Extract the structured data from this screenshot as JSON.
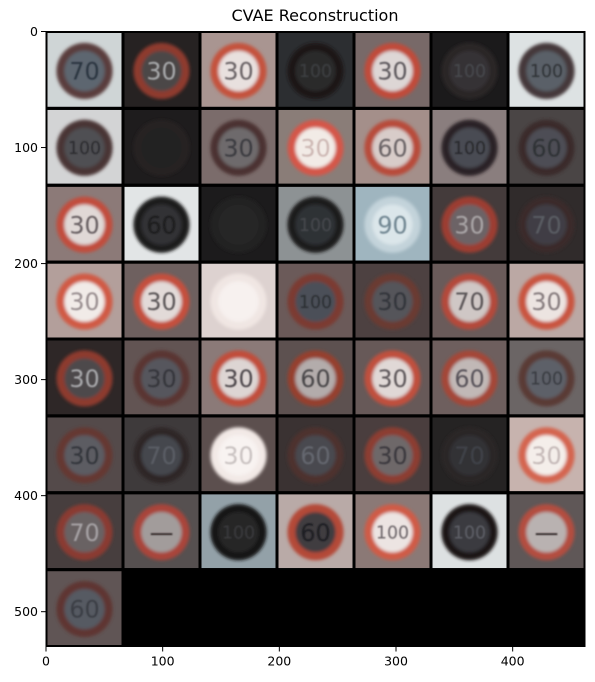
{
  "title": "CVAE Reconstruction",
  "x_ticks": [
    "0",
    "100",
    "200",
    "300",
    "400"
  ],
  "y_ticks": [
    "0",
    "100",
    "200",
    "300",
    "400",
    "500"
  ],
  "grid": {
    "rows": 8,
    "cols": 7,
    "tiles": [
      [
        {
          "label": "70",
          "bg": "#cfd5d6",
          "ring": "#5a3d3c",
          "inner": "#5d6670",
          "text": "#2a3440",
          "dark": false
        },
        {
          "label": "30",
          "bg": "#262222",
          "ring": "#8e3a2e",
          "inner": "#4b4747",
          "text": "#a7a8aa",
          "dark": true
        },
        {
          "label": "30",
          "bg": "#a99591",
          "ring": "#c4523d",
          "inner": "#e8e0de",
          "text": "#6b6366",
          "dark": false
        },
        {
          "label": "100",
          "bg": "#2c2e31",
          "ring": "#1a1718",
          "inner": "#2a292b",
          "text": "#3d3f43",
          "dark": true
        },
        {
          "label": "30",
          "bg": "#786968",
          "ring": "#c04c3a",
          "inner": "#ddd6d5",
          "text": "#5f5a5e",
          "dark": false
        },
        {
          "label": "100",
          "bg": "#1b1a1b",
          "ring": "#2b2527",
          "inner": "#343336",
          "text": "#47494d",
          "dark": true
        },
        {
          "label": "100",
          "bg": "#dde2e3",
          "ring": "#45393a",
          "inner": "#5a6068",
          "text": "#2d3136",
          "dark": false
        }
      ],
      [
        {
          "label": "100",
          "bg": "#d3d4d5",
          "ring": "#4a3434",
          "inner": "#4f4f52",
          "text": "#2b2b2f",
          "dark": false
        },
        {
          "label": "",
          "bg": "#1e1c1d",
          "ring": "#262223",
          "inner": "#242223",
          "text": "#2c2b2c",
          "dark": true
        },
        {
          "label": "30",
          "bg": "#7b6c6b",
          "ring": "#4b3332",
          "inner": "#6e6a6c",
          "text": "#3b3b3f",
          "dark": false
        },
        {
          "label": "30",
          "bg": "#8a7d78",
          "ring": "#d4574a",
          "inner": "#f2ebe6",
          "text": "#cdb8b4",
          "dark": false
        },
        {
          "label": "60",
          "bg": "#a48f8a",
          "ring": "#b84b3b",
          "inner": "#d8ccc9",
          "text": "#6a6466",
          "dark": false
        },
        {
          "label": "100",
          "bg": "#8a7e7e",
          "ring": "#2b2425",
          "inner": "#4a4b52",
          "text": "#25272b",
          "dark": false
        },
        {
          "label": "60",
          "bg": "#4a4545",
          "ring": "#3a2c2c",
          "inner": "#4d4e55",
          "text": "#2e3035",
          "dark": true
        }
      ],
      [
        {
          "label": "30",
          "bg": "#8c7a78",
          "ring": "#c14e3d",
          "inner": "#e0d8d6",
          "text": "#675f62",
          "dark": false
        },
        {
          "label": "60",
          "bg": "#e2e5e6",
          "ring": "#1f1b1c",
          "inner": "#303034",
          "text": "#1a1a1d",
          "dark": false
        },
        {
          "label": "",
          "bg": "#1c1b1c",
          "ring": "#232122",
          "inner": "#262526",
          "text": "#2d2c2d",
          "dark": true
        },
        {
          "label": "100",
          "bg": "#8d9294",
          "ring": "#1e1a1b",
          "inner": "#2f3035",
          "text": "#46484e",
          "dark": false
        },
        {
          "label": "90",
          "bg": "#9fb5bf",
          "ring": "#c3d3da",
          "inner": "#dbe6ea",
          "text": "#6f8591",
          "dark": false
        },
        {
          "label": "30",
          "bg": "#443b3b",
          "ring": "#9c3e31",
          "inner": "#6c6466",
          "text": "#a9a4a6",
          "dark": true
        },
        {
          "label": "70",
          "bg": "#302b2b",
          "ring": "#3a2c2c",
          "inner": "#3f3e44",
          "text": "#5a5d64",
          "dark": true
        }
      ],
      [
        {
          "label": "30",
          "bg": "#b39f9b",
          "ring": "#d05a45",
          "inner": "#f1ebe8",
          "text": "#9a8f91",
          "dark": false
        },
        {
          "label": "30",
          "bg": "#6e605f",
          "ring": "#c4503e",
          "inner": "#e2dad8",
          "text": "#5c5759",
          "dark": false
        },
        {
          "label": "",
          "bg": "#ddd2d0",
          "ring": "#f0e6e3",
          "inner": "#f7f1ef",
          "text": "#f7f1ef",
          "dark": false
        },
        {
          "label": "100",
          "bg": "#6b5a59",
          "ring": "#7c3a30",
          "inner": "#4c5058",
          "text": "#2b2e33",
          "dark": false
        },
        {
          "label": "30",
          "bg": "#4d4141",
          "ring": "#6a3a33",
          "inner": "#54545a",
          "text": "#33353a",
          "dark": true
        },
        {
          "label": "70",
          "bg": "#6a5b5a",
          "ring": "#b4493a",
          "inner": "#cfc7c5",
          "text": "#5a5457",
          "dark": false
        },
        {
          "label": "30",
          "bg": "#bba8a4",
          "ring": "#c9553f",
          "inner": "#ece4e1",
          "text": "#867c7e",
          "dark": false
        }
      ],
      [
        {
          "label": "30",
          "bg": "#2e2727",
          "ring": "#8d3a2e",
          "inner": "#4e4a4c",
          "text": "#a8a8ab",
          "dark": true
        },
        {
          "label": "30",
          "bg": "#625453",
          "ring": "#5a3532",
          "inner": "#57575d",
          "text": "#34363b",
          "dark": false
        },
        {
          "label": "30",
          "bg": "#8b7a78",
          "ring": "#c14d3b",
          "inner": "#ddd5d3",
          "text": "#4f4a4d",
          "dark": false
        },
        {
          "label": "60",
          "bg": "#5d5150",
          "ring": "#95412f",
          "inner": "#b3acab",
          "text": "#4a4649",
          "dark": false
        },
        {
          "label": "30",
          "bg": "#675958",
          "ring": "#c0503e",
          "inner": "#e0d8d6",
          "text": "#5e595b",
          "dark": false
        },
        {
          "label": "60",
          "bg": "#6e5f5e",
          "ring": "#a44737",
          "inner": "#c1b8b6",
          "text": "#58535a",
          "dark": false
        },
        {
          "label": "100",
          "bg": "#6b6565",
          "ring": "#5a3a36",
          "inner": "#5d6068",
          "text": "#383b41",
          "dark": false
        }
      ],
      [
        {
          "label": "30",
          "bg": "#544a4a",
          "ring": "#653733",
          "inner": "#5b5b62",
          "text": "#33353b",
          "dark": false
        },
        {
          "label": "70",
          "bg": "#3e3a3b",
          "ring": "#2e2628",
          "inner": "#45464d",
          "text": "#5a5d65",
          "dark": true
        },
        {
          "label": "30",
          "bg": "#5c4f4e",
          "ring": "#f2e9e6",
          "inner": "#f8f3f1",
          "text": "#c9c2c1",
          "dark": false
        },
        {
          "label": "60",
          "bg": "#3a3232",
          "ring": "#4e302d",
          "inner": "#4a4a50",
          "text": "#65686f",
          "dark": true
        },
        {
          "label": "30",
          "bg": "#4a3e3e",
          "ring": "#8c3d32",
          "inner": "#6e6769",
          "text": "#3a393d",
          "dark": true
        },
        {
          "label": "70",
          "bg": "#252323",
          "ring": "#2c2526",
          "inner": "#303036",
          "text": "#3f4248",
          "dark": true
        },
        {
          "label": "30",
          "bg": "#c7b3ae",
          "ring": "#d4654f",
          "inner": "#f4eeea",
          "text": "#c5b9b8",
          "dark": false
        }
      ],
      [
        {
          "label": "70",
          "bg": "#473e3e",
          "ring": "#8a3b30",
          "inner": "#696264",
          "text": "#a6a2a5",
          "dark": true
        },
        {
          "label": "—",
          "bg": "#565050",
          "ring": "#a9453a",
          "inner": "#a29c9b",
          "text": "#2a2223",
          "dark": false
        },
        {
          "label": "100",
          "bg": "#93a1a8",
          "ring": "#161415",
          "inner": "#262628",
          "text": "#3a3b3e",
          "dark": false
        },
        {
          "label": "60",
          "bg": "#b9aaa7",
          "ring": "#b44838",
          "inner": "#3f3d41",
          "text": "#1c1d21",
          "dark": false
        },
        {
          "label": "100",
          "bg": "#8b7976",
          "ring": "#cf5c47",
          "inner": "#ece4e2",
          "text": "#6b6467",
          "dark": false
        },
        {
          "label": "100",
          "bg": "#dde1e2",
          "ring": "#1a1819",
          "inner": "#3a3b40",
          "text": "#5e6068",
          "dark": false
        },
        {
          "label": "—",
          "bg": "#5f5757",
          "ring": "#b34e40",
          "inner": "#b9b2b1",
          "text": "#2c2324",
          "dark": false
        }
      ],
      [
        {
          "label": "60",
          "bg": "#605555",
          "ring": "#5e3633",
          "inner": "#565a62",
          "text": "#3a3d44",
          "dark": false
        },
        null,
        null,
        null,
        null,
        null,
        null
      ]
    ]
  }
}
